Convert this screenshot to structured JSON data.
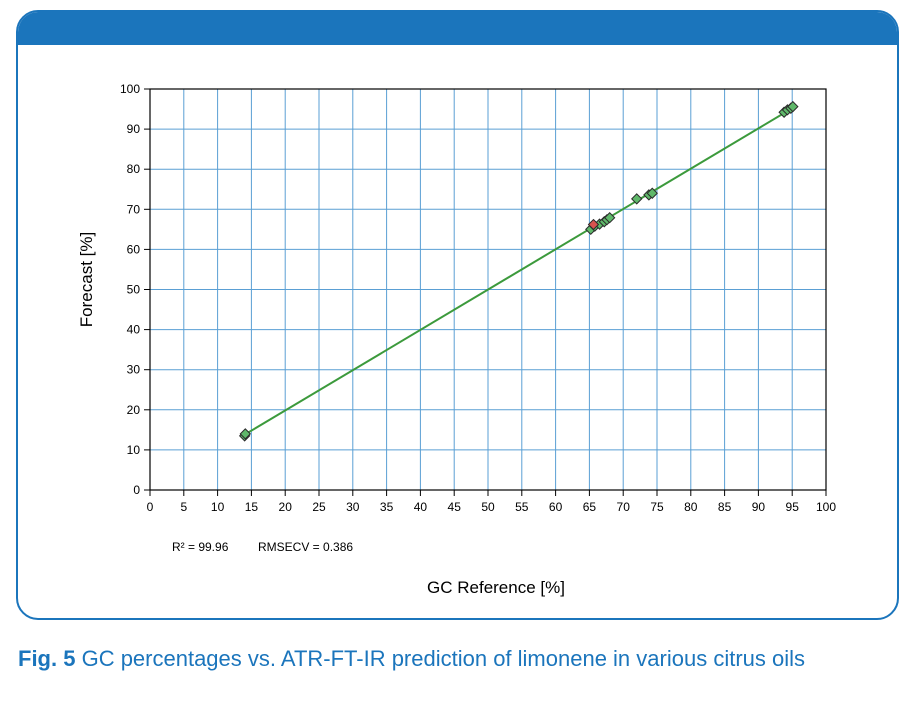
{
  "caption": {
    "label": "Fig. 5",
    "text": "GC percentages vs. ATR-FT-IR prediction of limonene in various citrus oils"
  },
  "stats": {
    "r2": "R² = 99.96",
    "rmsecv": "RMSECV = 0.386"
  },
  "colors": {
    "accent": "#1b75bc",
    "grid": "#5a9fd4",
    "fit_line": "#3c9a3c",
    "point_green": "#5fb86a",
    "point_red": "#d9534f"
  },
  "chart_data": {
    "type": "scatter",
    "title": "",
    "xlabel": "GC Reference [%]",
    "ylabel": "Forecast  [%]",
    "xlim": [
      0,
      100
    ],
    "ylim": [
      0,
      100
    ],
    "xticks": [
      0,
      5,
      10,
      15,
      20,
      25,
      30,
      35,
      40,
      45,
      50,
      55,
      60,
      65,
      70,
      75,
      80,
      85,
      90,
      95,
      100
    ],
    "yticks": [
      0,
      10,
      20,
      30,
      40,
      50,
      60,
      70,
      80,
      90,
      100
    ],
    "grid": true,
    "fit_line": {
      "x": [
        14,
        95
      ],
      "y": [
        13.8,
        95.2
      ]
    },
    "series": [
      {
        "color": "green",
        "points": [
          [
            14,
            13.5
          ],
          [
            14.1,
            14.0
          ],
          [
            65.2,
            65.0
          ],
          [
            65.8,
            65.8
          ],
          [
            66.5,
            66.3
          ],
          [
            67.2,
            66.9
          ],
          [
            67.6,
            67.4
          ],
          [
            68.0,
            67.9
          ],
          [
            72.0,
            72.6
          ],
          [
            73.8,
            73.6
          ],
          [
            74.3,
            74.0
          ],
          [
            93.8,
            94.2
          ],
          [
            94.3,
            94.8
          ],
          [
            94.8,
            95.2
          ],
          [
            95.1,
            95.6
          ]
        ]
      },
      {
        "color": "red",
        "points": [
          [
            65.6,
            66.2
          ]
        ]
      }
    ]
  }
}
